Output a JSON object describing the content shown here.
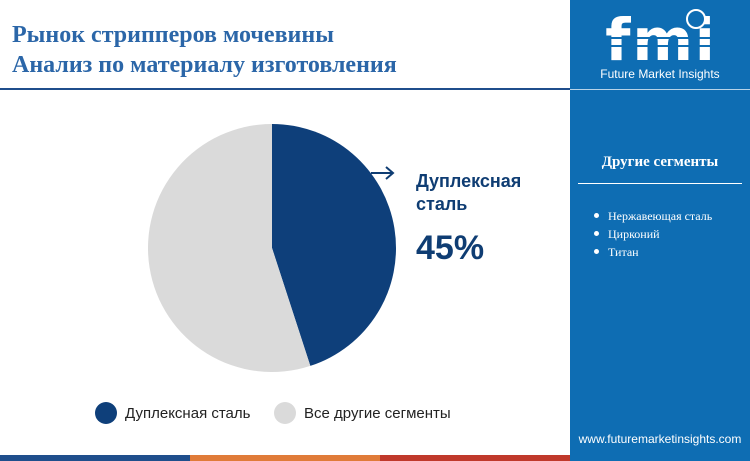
{
  "title": {
    "line1": "Рынок стрипперов мочевины",
    "line2": "Анализ по материалу изготовления"
  },
  "chart_data": {
    "type": "pie",
    "categories": [
      "Дуплексная сталь",
      "Все другие сегменты"
    ],
    "values": [
      45,
      55
    ],
    "unit": "%",
    "colors": [
      "#0e3f7a",
      "#dadada"
    ],
    "start_angle_deg": 0,
    "direction": "clockwise",
    "callout": {
      "label": "Дуплексная сталь",
      "value": "45%"
    },
    "legend": {
      "placement": "bottom",
      "entries": [
        "Дуплексная сталь",
        "Все другие сегменты"
      ]
    }
  },
  "sidebar": {
    "logo_text": "fmi",
    "logo_caption": "Future Market Insights",
    "segments_heading": "Другие сегменты",
    "segments": [
      "Нержавеющая сталь",
      "Цирконий",
      "Титан"
    ],
    "website": "www.futuremarketinsights.com"
  },
  "colors": {
    "title": "#2b66a8",
    "sidebar_bg": "#0e6db3",
    "accent_dark": "#0e3f7a",
    "strip": [
      "#1f4e8c",
      "#e07b39",
      "#c0392b",
      "#2e86c1"
    ]
  }
}
